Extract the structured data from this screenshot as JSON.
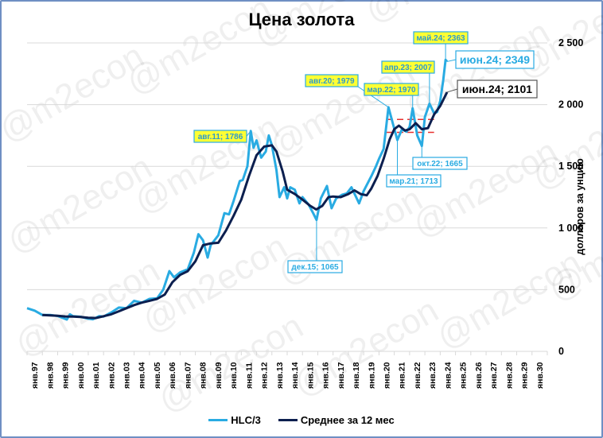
{
  "chart_data": {
    "type": "line",
    "title": "Цена золота",
    "xlabel": "",
    "ylabel": "долларов за унцию",
    "ylim": [
      0,
      2500
    ],
    "yticks": [
      "0",
      "500",
      "1 000",
      "1 500",
      "2 000",
      "2 500"
    ],
    "xticks": [
      "янв.97",
      "янв.98",
      "янв.99",
      "янв.00",
      "янв.01",
      "янв.02",
      "янв.03",
      "янв.04",
      "янв.05",
      "янв.06",
      "янв.07",
      "янв.08",
      "янв.09",
      "янв.10",
      "янв.11",
      "янв.12",
      "янв.13",
      "янв.14",
      "янв.15",
      "янв.16",
      "янв.17",
      "янв.18",
      "янв.19",
      "янв.20",
      "янв.21",
      "янв.22",
      "янв.23",
      "янв.24",
      "янв.25",
      "янв.26",
      "янв.27",
      "янв.28",
      "янв.29",
      "янв.30"
    ],
    "grid": true,
    "legend_position": "bottom",
    "series": [
      {
        "name": "HLC/3",
        "color": "#29abe2",
        "points": [
          [
            1997.0,
            350
          ],
          [
            1997.5,
            330
          ],
          [
            1998.0,
            295
          ],
          [
            1998.5,
            295
          ],
          [
            1999.0,
            287
          ],
          [
            1999.6,
            258
          ],
          [
            1999.8,
            300
          ],
          [
            2000.0,
            285
          ],
          [
            2000.5,
            280
          ],
          [
            2001.0,
            265
          ],
          [
            2001.3,
            260
          ],
          [
            2001.7,
            285
          ],
          [
            2002.0,
            282
          ],
          [
            2002.5,
            315
          ],
          [
            2003.0,
            355
          ],
          [
            2003.5,
            350
          ],
          [
            2004.0,
            410
          ],
          [
            2004.5,
            395
          ],
          [
            2005.0,
            425
          ],
          [
            2005.5,
            430
          ],
          [
            2005.9,
            500
          ],
          [
            2006.3,
            650
          ],
          [
            2006.6,
            600
          ],
          [
            2007.0,
            640
          ],
          [
            2007.5,
            665
          ],
          [
            2007.9,
            800
          ],
          [
            2008.2,
            950
          ],
          [
            2008.5,
            900
          ],
          [
            2008.8,
            760
          ],
          [
            2009.0,
            860
          ],
          [
            2009.5,
            940
          ],
          [
            2009.9,
            1120
          ],
          [
            2010.2,
            1110
          ],
          [
            2010.5,
            1220
          ],
          [
            2010.9,
            1380
          ],
          [
            2011.1,
            1390
          ],
          [
            2011.4,
            1500
          ],
          [
            2011.62,
            1786
          ],
          [
            2011.8,
            1650
          ],
          [
            2012.0,
            1710
          ],
          [
            2012.3,
            1570
          ],
          [
            2012.6,
            1620
          ],
          [
            2012.8,
            1750
          ],
          [
            2013.0,
            1670
          ],
          [
            2013.3,
            1470
          ],
          [
            2013.5,
            1250
          ],
          [
            2013.8,
            1330
          ],
          [
            2014.0,
            1240
          ],
          [
            2014.2,
            1330
          ],
          [
            2014.5,
            1310
          ],
          [
            2014.8,
            1200
          ],
          [
            2015.0,
            1250
          ],
          [
            2015.4,
            1190
          ],
          [
            2015.7,
            1120
          ],
          [
            2015.92,
            1065
          ],
          [
            2016.2,
            1240
          ],
          [
            2016.6,
            1340
          ],
          [
            2016.9,
            1160
          ],
          [
            2017.2,
            1240
          ],
          [
            2017.6,
            1270
          ],
          [
            2017.9,
            1280
          ],
          [
            2018.2,
            1330
          ],
          [
            2018.7,
            1200
          ],
          [
            2019.0,
            1300
          ],
          [
            2019.5,
            1420
          ],
          [
            2019.8,
            1500
          ],
          [
            2020.0,
            1560
          ],
          [
            2020.3,
            1640
          ],
          [
            2020.62,
            1979
          ],
          [
            2020.9,
            1850
          ],
          [
            2021.2,
            1713
          ],
          [
            2021.5,
            1800
          ],
          [
            2021.8,
            1780
          ],
          [
            2022.0,
            1820
          ],
          [
            2022.2,
            1970
          ],
          [
            2022.5,
            1750
          ],
          [
            2022.8,
            1665
          ],
          [
            2023.0,
            1900
          ],
          [
            2023.3,
            2007
          ],
          [
            2023.6,
            1930
          ],
          [
            2023.8,
            1940
          ],
          [
            2024.0,
            2030
          ],
          [
            2024.2,
            2200
          ],
          [
            2024.35,
            2363
          ],
          [
            2024.45,
            2349
          ]
        ]
      },
      {
        "name": "Среднее за 12 мес",
        "color": "#0c1f4f",
        "points": [
          [
            1998.0,
            295
          ],
          [
            1998.5,
            292
          ],
          [
            1999.0,
            288
          ],
          [
            1999.5,
            283
          ],
          [
            2000.0,
            282
          ],
          [
            2000.5,
            279
          ],
          [
            2001.0,
            272
          ],
          [
            2001.5,
            270
          ],
          [
            2002.0,
            285
          ],
          [
            2002.5,
            300
          ],
          [
            2003.0,
            325
          ],
          [
            2003.5,
            350
          ],
          [
            2004.0,
            375
          ],
          [
            2004.5,
            395
          ],
          [
            2005.0,
            410
          ],
          [
            2005.5,
            425
          ],
          [
            2006.0,
            460
          ],
          [
            2006.5,
            560
          ],
          [
            2007.0,
            620
          ],
          [
            2007.5,
            650
          ],
          [
            2008.0,
            730
          ],
          [
            2008.5,
            860
          ],
          [
            2009.0,
            875
          ],
          [
            2009.5,
            880
          ],
          [
            2010.0,
            980
          ],
          [
            2010.5,
            1100
          ],
          [
            2011.0,
            1230
          ],
          [
            2011.5,
            1420
          ],
          [
            2012.0,
            1590
          ],
          [
            2012.5,
            1660
          ],
          [
            2013.0,
            1670
          ],
          [
            2013.3,
            1620
          ],
          [
            2013.7,
            1460
          ],
          [
            2014.0,
            1310
          ],
          [
            2014.5,
            1275
          ],
          [
            2015.0,
            1230
          ],
          [
            2015.5,
            1180
          ],
          [
            2015.9,
            1150
          ],
          [
            2016.3,
            1180
          ],
          [
            2016.7,
            1250
          ],
          [
            2017.0,
            1255
          ],
          [
            2017.5,
            1250
          ],
          [
            2018.0,
            1275
          ],
          [
            2018.4,
            1305
          ],
          [
            2018.8,
            1275
          ],
          [
            2019.2,
            1265
          ],
          [
            2019.5,
            1320
          ],
          [
            2019.9,
            1420
          ],
          [
            2020.3,
            1560
          ],
          [
            2020.7,
            1720
          ],
          [
            2021.0,
            1800
          ],
          [
            2021.3,
            1830
          ],
          [
            2021.7,
            1790
          ],
          [
            2022.0,
            1800
          ],
          [
            2022.4,
            1850
          ],
          [
            2022.8,
            1800
          ],
          [
            2023.2,
            1810
          ],
          [
            2023.6,
            1920
          ],
          [
            2024.0,
            1990
          ],
          [
            2024.45,
            2101
          ]
        ]
      }
    ],
    "reference_lines": [
      {
        "y": 1880,
        "x_from": 2020.5,
        "x_to": 2023.6,
        "style": "dashed",
        "color": "#e8302f"
      },
      {
        "y": 1775,
        "x_from": 2020.5,
        "x_to": 2023.6,
        "style": "dashed",
        "color": "#e8302f"
      }
    ],
    "annotations": [
      {
        "text": "авг.11; 1786",
        "x": 2011.62,
        "y": 1786,
        "style": "yellow"
      },
      {
        "text": "дек.15; 1065",
        "x": 2015.92,
        "y": 1065,
        "style": "white-blue"
      },
      {
        "text": "авг.20; 1979",
        "x": 2020.62,
        "y": 1979,
        "style": "yellow"
      },
      {
        "text": "мар.21; 1713",
        "x": 2021.2,
        "y": 1713,
        "style": "white-blue"
      },
      {
        "text": "мар.22; 1970",
        "x": 2022.2,
        "y": 1970,
        "style": "yellow"
      },
      {
        "text": "окт.22; 1665",
        "x": 2022.8,
        "y": 1665,
        "style": "white-blue"
      },
      {
        "text": "апр.23; 2007",
        "x": 2023.3,
        "y": 2007,
        "style": "yellow"
      },
      {
        "text": "май.24; 2363",
        "x": 2024.35,
        "y": 2363,
        "style": "yellow"
      },
      {
        "text": "июн.24; 2349",
        "x": 2024.45,
        "y": 2349,
        "style": "white-blue-large"
      },
      {
        "text": "июн.24; 2101",
        "x": 2024.45,
        "y": 2101,
        "style": "white-black-large"
      }
    ],
    "watermark": "@m2econ"
  },
  "legend": {
    "items": [
      {
        "label": "HLC/3",
        "color": "#29abe2"
      },
      {
        "label": "Среднее за 12 мес",
        "color": "#0c1f4f"
      }
    ]
  }
}
